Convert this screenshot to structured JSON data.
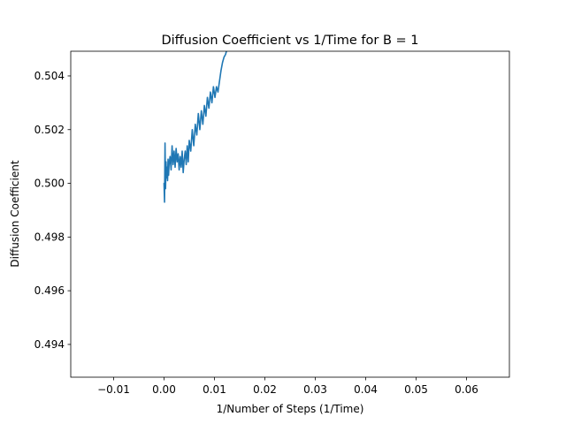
{
  "chart_data": {
    "type": "line",
    "title": "Diffusion Coefficient vs 1/Time for B = 1",
    "xlabel": "1/Number of Steps (1/Time)",
    "ylabel": "Diffusion Coefficient",
    "xlim": [
      -0.0185,
      0.0685
    ],
    "ylim": [
      0.49278,
      0.50492
    ],
    "xticks": [
      -0.01,
      0.0,
      0.01,
      0.02,
      0.03,
      0.04,
      0.05,
      0.06
    ],
    "xtick_labels": [
      "−0.01",
      "0.00",
      "0.01",
      "0.02",
      "0.03",
      "0.04",
      "0.05",
      "0.06"
    ],
    "yticks": [
      0.494,
      0.496,
      0.498,
      0.5,
      0.502,
      0.504
    ],
    "ytick_labels": [
      "0.494",
      "0.496",
      "0.498",
      "0.500",
      "0.502",
      "0.504"
    ],
    "grid": false,
    "legend": "none",
    "series": [
      {
        "color": "#1f77b4",
        "x": [
          0.0,
          0.0001,
          0.0002,
          0.0003,
          0.0004,
          0.0005,
          0.0006,
          0.0007,
          0.0008,
          0.0009,
          0.001,
          0.0012,
          0.0014,
          0.0016,
          0.0018,
          0.002,
          0.0022,
          0.0024,
          0.0026,
          0.0028,
          0.003,
          0.0032,
          0.0034,
          0.0036,
          0.0038,
          0.004,
          0.0042,
          0.0044,
          0.0046,
          0.0048,
          0.005,
          0.0053,
          0.0056,
          0.0059,
          0.0062,
          0.0065,
          0.0068,
          0.0071,
          0.0074,
          0.0077,
          0.008,
          0.0083,
          0.0086,
          0.0089,
          0.0092,
          0.0095,
          0.0098,
          0.0101,
          0.0104,
          0.0107,
          0.011,
          0.0113,
          0.0116,
          0.0119,
          0.0122,
          0.0125,
          0.013,
          0.0135,
          0.014,
          0.0148
        ],
        "y": [
          0.5,
          0.4993,
          0.5015,
          0.4998,
          0.5008,
          0.5002,
          0.5006,
          0.5001,
          0.5009,
          0.5003,
          0.5007,
          0.501,
          0.5005,
          0.5014,
          0.5007,
          0.5012,
          0.5006,
          0.5013,
          0.5008,
          0.5011,
          0.5005,
          0.501,
          0.5006,
          0.5012,
          0.5004,
          0.5009,
          0.5012,
          0.5007,
          0.5014,
          0.5008,
          0.5016,
          0.5012,
          0.502,
          0.5014,
          0.5022,
          0.5018,
          0.5026,
          0.502,
          0.5027,
          0.5022,
          0.5029,
          0.5025,
          0.5032,
          0.5028,
          0.5034,
          0.503,
          0.5036,
          0.5032,
          0.5036,
          0.5034,
          0.5038,
          0.5042,
          0.5045,
          0.5047,
          0.5048,
          0.505,
          0.505,
          0.5051,
          0.5051,
          0.5052
        ]
      }
    ]
  }
}
